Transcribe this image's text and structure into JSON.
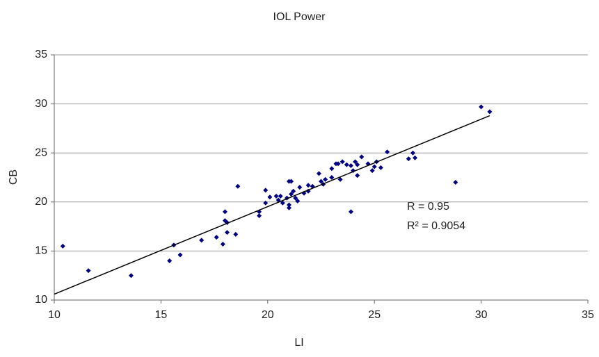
{
  "chart_data": {
    "type": "scatter",
    "title": "IOL Power",
    "xlabel": "LI",
    "ylabel": "CB",
    "x": [
      10.4,
      11.6,
      13.6,
      15.4,
      15.6,
      15.9,
      16.9,
      17.6,
      17.9,
      18.0,
      18.0,
      18.1,
      18.1,
      18.5,
      18.6,
      19.6,
      19.6,
      19.9,
      19.9,
      20.1,
      20.4,
      20.5,
      20.6,
      20.7,
      20.9,
      21.0,
      21.0,
      21.0,
      21.1,
      21.1,
      21.2,
      21.3,
      21.4,
      21.5,
      21.7,
      21.9,
      21.9,
      22.1,
      22.4,
      22.5,
      22.6,
      22.7,
      23.0,
      23.0,
      23.2,
      23.3,
      23.4,
      23.5,
      23.7,
      23.9,
      23.9,
      24.0,
      24.1,
      24.2,
      24.2,
      24.4,
      24.7,
      24.9,
      25.0,
      25.1,
      25.3,
      25.6,
      26.6,
      26.8,
      26.9,
      28.8,
      30.0,
      30.4
    ],
    "values": [
      15.5,
      13.0,
      12.5,
      14.0,
      15.6,
      14.6,
      16.1,
      16.4,
      15.7,
      19.0,
      18.1,
      17.9,
      16.9,
      16.7,
      21.6,
      18.6,
      19.0,
      19.9,
      21.2,
      20.5,
      20.6,
      20.2,
      20.6,
      19.9,
      20.4,
      19.4,
      19.7,
      22.1,
      22.1,
      20.8,
      21.1,
      20.4,
      20.1,
      21.5,
      20.9,
      21.7,
      21.1,
      21.6,
      22.9,
      22.1,
      21.8,
      22.3,
      22.5,
      23.4,
      23.9,
      23.9,
      22.3,
      24.1,
      23.8,
      19.0,
      23.7,
      23.2,
      24.1,
      22.7,
      23.8,
      24.6,
      23.9,
      23.2,
      23.6,
      24.1,
      23.5,
      25.1,
      24.4,
      25.0,
      24.5,
      22.0,
      29.7,
      29.2
    ],
    "color": "#000080",
    "trendline": {
      "x": [
        10,
        30.4
      ],
      "values": [
        10.6,
        28.8
      ],
      "color": "#000000"
    },
    "annotations": [
      "R   = 0.95",
      "R² = 0.9054"
    ],
    "xlim": [
      10,
      35
    ],
    "xticks": [
      10,
      15,
      20,
      25,
      30,
      35
    ],
    "ylim": [
      10,
      35
    ],
    "yticks": [
      10,
      15,
      20,
      25,
      30,
      35
    ],
    "grid": true
  }
}
